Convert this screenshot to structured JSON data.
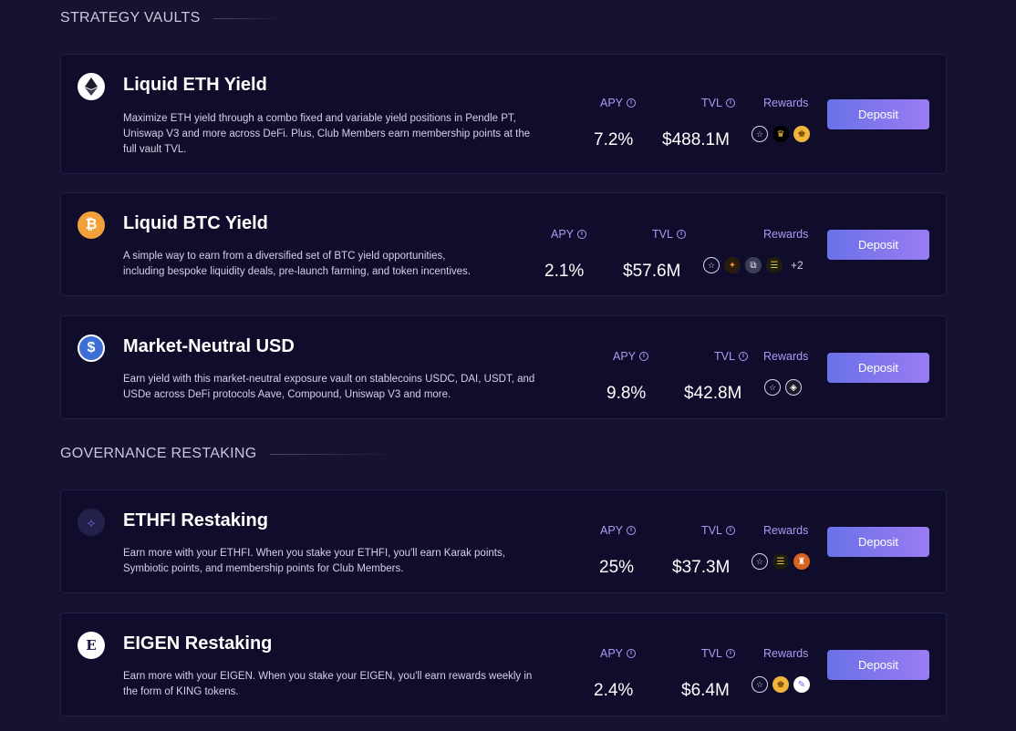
{
  "sections": [
    {
      "title": "STRATEGY VAULTS",
      "vaults": [
        {
          "icon": "ethereum-icon",
          "name": "Liquid ETH Yield",
          "description": "Maximize ETH yield through a combo fixed and variable yield positions in Pendle PT, Uniswap V3 and more across DeFi. Plus, Club Members earn membership points at the full vault TVL.",
          "apy_label": "APY",
          "apy": "7.2%",
          "tvl_label": "TVL",
          "tvl": "$488.1M",
          "rewards_label": "Rewards",
          "reward_icons": [
            "star-icon",
            "crown-icon",
            "king-icon"
          ],
          "rewards_more": "",
          "deposit_label": "Deposit"
        },
        {
          "icon": "bitcoin-icon",
          "name": "Liquid BTC Yield",
          "description": "A simple way to earn from a diversified set of BTC yield opportunities, including bespoke liquidity deals, pre-launch farming, and token incentives.",
          "apy_label": "APY",
          "apy": "2.1%",
          "tvl_label": "TVL",
          "tvl": "$57.6M",
          "rewards_label": "Rewards",
          "reward_icons": [
            "star-icon",
            "octagon-icon",
            "chain-icon",
            "stack-icon"
          ],
          "rewards_more": "+2",
          "deposit_label": "Deposit"
        },
        {
          "icon": "usdc-icon",
          "name": "Market-Neutral USD",
          "description": "Earn yield with this market-neutral exposure vault on stablecoins USDC, DAI, USDT, and USDe across DeFi protocols Aave, Compound, Uniswap V3 and more.",
          "apy_label": "APY",
          "apy": "9.8%",
          "tvl_label": "TVL",
          "tvl": "$42.8M",
          "rewards_label": "Rewards",
          "reward_icons": [
            "star-icon",
            "ethena-icon"
          ],
          "rewards_more": "",
          "deposit_label": "Deposit"
        }
      ]
    },
    {
      "title": "GOVERNANCE RESTAKING",
      "vaults": [
        {
          "icon": "ethfi-icon",
          "name": "ETHFI Restaking",
          "description": "Earn more with your ETHFI. When you stake your ETHFI, you'll earn Karak points, Symbiotic points, and membership points for Club Members.",
          "apy_label": "APY",
          "apy": "25%",
          "tvl_label": "TVL",
          "tvl": "$37.3M",
          "rewards_label": "Rewards",
          "reward_icons": [
            "star-icon",
            "stack-icon",
            "symbiotic-icon"
          ],
          "rewards_more": "",
          "deposit_label": "Deposit"
        },
        {
          "icon": "eigen-icon",
          "name": "EIGEN Restaking",
          "description": "Earn more with your EIGEN. When you stake your EIGEN, you'll earn rewards weekly in the form of KING tokens.",
          "apy_label": "APY",
          "apy": "2.4%",
          "tvl_label": "TVL",
          "tvl": "$6.4M",
          "rewards_label": "Rewards",
          "reward_icons": [
            "star-icon",
            "king-icon",
            "ribbon-icon"
          ],
          "rewards_more": "",
          "deposit_label": "Deposit"
        }
      ]
    }
  ]
}
